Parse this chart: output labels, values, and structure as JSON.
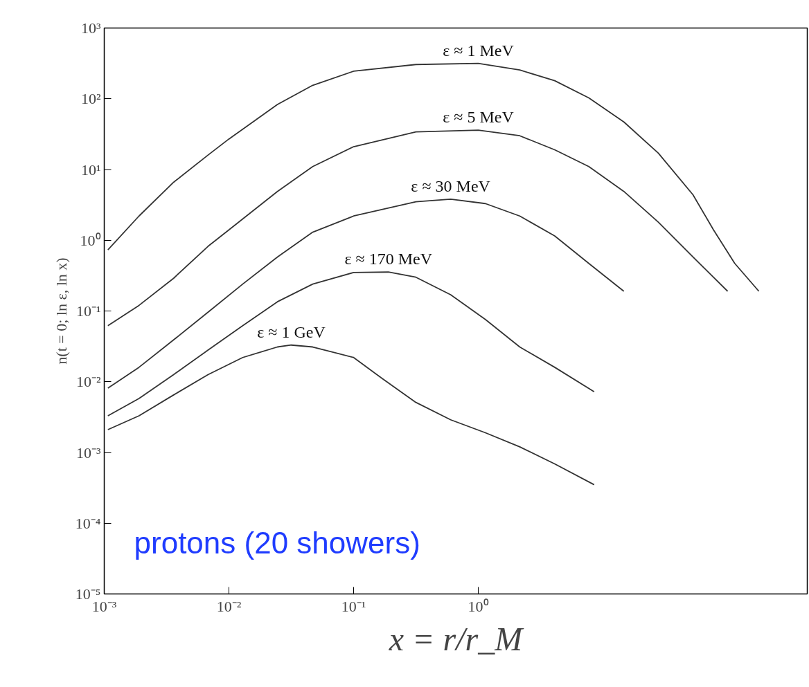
{
  "chart_data": [
    {
      "type": "line",
      "ylabel": "n(t = 0; ln ε, ln x)",
      "xlabel": "x = r/r_M",
      "log": "xy",
      "line_style": "solid",
      "xlim": [
        0.001,
        435
      ],
      "ylim": [
        1e-05,
        1000
      ],
      "xticks": [
        {
          "value": 0.001,
          "label": "10⁻³"
        },
        {
          "value": 0.01,
          "label": "10⁻²"
        },
        {
          "value": 0.1,
          "label": "10⁻¹"
        },
        {
          "value": 1,
          "label": "10⁰"
        }
      ],
      "yticks": [
        {
          "value": 1e-05,
          "label": "10⁻⁵"
        },
        {
          "value": 0.0001,
          "label": "10⁻⁴"
        },
        {
          "value": 0.001,
          "label": "10⁻³"
        },
        {
          "value": 0.01,
          "label": "10⁻²"
        },
        {
          "value": 0.1,
          "label": "10⁻¹"
        },
        {
          "value": 1,
          "label": "10⁰"
        },
        {
          "value": 10,
          "label": "10¹"
        },
        {
          "value": 100,
          "label": "10²"
        },
        {
          "value": 1000,
          "label": "10³"
        }
      ],
      "annotations": [
        "protons (20 showers)"
      ],
      "series": [
        {
          "name": "ε ≈ 1 MeV",
          "color": "#333333",
          "x": [
            0.00107,
            0.0019,
            0.0036,
            0.0068,
            0.01,
            0.0245,
            0.047,
            0.1,
            0.316,
            1,
            2.15,
            4.1,
            7.7,
            14.7,
            27.8,
            52.7,
            77,
            114,
            178
          ],
          "values": [
            0.73,
            2.2,
            6.6,
            16,
            27,
            83,
            155,
            245,
            305,
            316,
            255,
            180,
            103,
            47,
            17,
            4.4,
            1.4,
            0.47,
            0.19
          ]
        },
        {
          "name": "ε ≈ 5 MeV",
          "color": "#333333",
          "x": [
            0.00107,
            0.0019,
            0.0036,
            0.0068,
            0.01,
            0.0245,
            0.047,
            0.1,
            0.316,
            1,
            2.15,
            4.1,
            7.7,
            14.7,
            27.8,
            52.7,
            100
          ],
          "values": [
            0.062,
            0.12,
            0.29,
            0.82,
            1.4,
            4.9,
            11,
            21,
            34,
            36,
            30,
            19,
            11,
            4.9,
            1.8,
            0.58,
            0.19
          ]
        },
        {
          "name": "ε ≈ 30 MeV",
          "color": "#333333",
          "x": [
            0.00107,
            0.0019,
            0.0036,
            0.0068,
            0.0129,
            0.0245,
            0.047,
            0.1,
            0.316,
            0.6,
            1.14,
            2.15,
            4.1,
            7.7,
            14.7
          ],
          "values": [
            0.0081,
            0.016,
            0.039,
            0.096,
            0.24,
            0.58,
            1.3,
            2.2,
            3.5,
            3.8,
            3.3,
            2.2,
            1.15,
            0.47,
            0.19
          ]
        },
        {
          "name": "ε ≈ 170 MeV",
          "color": "#333333",
          "x": [
            0.00107,
            0.0019,
            0.0036,
            0.0068,
            0.0129,
            0.0245,
            0.047,
            0.1,
            0.19,
            0.316,
            0.6,
            1.14,
            2.15,
            4.1,
            8.5
          ],
          "values": [
            0.0033,
            0.0058,
            0.0126,
            0.028,
            0.062,
            0.135,
            0.24,
            0.35,
            0.355,
            0.3,
            0.17,
            0.076,
            0.031,
            0.016,
            0.0072
          ]
        },
        {
          "name": "ε ≈ 1 GeV",
          "color": "#333333",
          "x": [
            0.00107,
            0.0019,
            0.0036,
            0.0068,
            0.0129,
            0.0245,
            0.0316,
            0.047,
            0.1,
            0.167,
            0.316,
            0.6,
            1.14,
            2.15,
            4.1,
            8.5
          ],
          "values": [
            0.0021,
            0.0033,
            0.0065,
            0.0126,
            0.022,
            0.031,
            0.033,
            0.031,
            0.022,
            0.0113,
            0.0051,
            0.0029,
            0.0019,
            0.0012,
            0.00069,
            0.00035
          ]
        }
      ]
    }
  ]
}
